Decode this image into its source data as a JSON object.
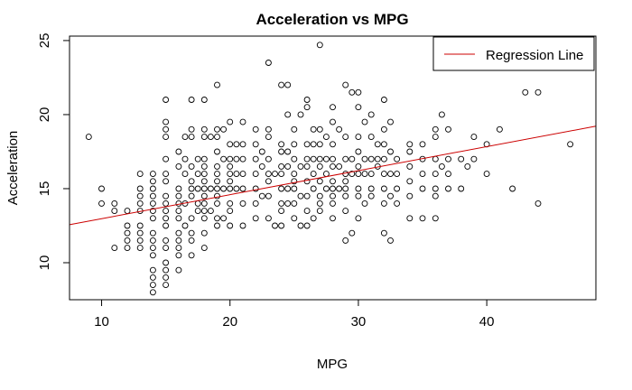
{
  "chart_data": {
    "type": "scatter",
    "title": "Acceleration vs MPG",
    "xlabel": "MPG",
    "ylabel": "Acceleration",
    "xlim": [
      7.5,
      48.5
    ],
    "ylim": [
      7.5,
      25.3
    ],
    "x_ticks": [
      10,
      20,
      30,
      40
    ],
    "y_ticks": [
      10,
      15,
      20,
      25
    ],
    "grid": false,
    "legend": {
      "position": "top-right",
      "entries": [
        {
          "label": "Regression Line",
          "color": "#cc0000"
        }
      ]
    },
    "series": [
      {
        "points": [
          [
            9,
            18.5
          ],
          [
            10,
            15
          ],
          [
            10,
            14
          ],
          [
            11,
            14
          ],
          [
            11,
            13.5
          ],
          [
            11,
            11
          ],
          [
            12,
            13.5
          ],
          [
            12,
            12.5
          ],
          [
            12,
            12
          ],
          [
            12,
            11.5
          ],
          [
            12,
            11
          ],
          [
            13,
            16
          ],
          [
            13,
            15
          ],
          [
            13,
            14.5
          ],
          [
            13,
            14
          ],
          [
            13,
            13.5
          ],
          [
            13,
            12.5
          ],
          [
            13,
            12
          ],
          [
            13,
            11.5
          ],
          [
            13,
            11
          ],
          [
            14,
            16
          ],
          [
            14,
            15.5
          ],
          [
            14,
            15
          ],
          [
            14,
            14.5
          ],
          [
            14,
            14
          ],
          [
            14,
            13.5
          ],
          [
            14,
            13
          ],
          [
            14,
            12
          ],
          [
            14,
            11.5
          ],
          [
            14,
            11
          ],
          [
            14,
            10.5
          ],
          [
            14,
            9.5
          ],
          [
            14,
            9
          ],
          [
            14,
            8.5
          ],
          [
            14,
            8
          ],
          [
            15,
            21
          ],
          [
            15,
            19.5
          ],
          [
            15,
            19
          ],
          [
            15,
            18.5
          ],
          [
            15,
            17
          ],
          [
            15,
            16
          ],
          [
            15,
            15.5
          ],
          [
            15,
            14.5
          ],
          [
            15,
            14
          ],
          [
            15,
            13.5
          ],
          [
            15,
            13
          ],
          [
            15,
            12.5
          ],
          [
            15,
            11.5
          ],
          [
            15,
            11
          ],
          [
            15,
            10
          ],
          [
            15,
            9.5
          ],
          [
            15,
            9
          ],
          [
            15,
            8.5
          ],
          [
            16,
            17.5
          ],
          [
            16,
            16.5
          ],
          [
            16,
            15
          ],
          [
            16,
            14.5
          ],
          [
            16,
            14
          ],
          [
            16,
            13.5
          ],
          [
            16,
            13
          ],
          [
            16,
            12
          ],
          [
            16,
            11.5
          ],
          [
            16,
            11
          ],
          [
            16,
            10.5
          ],
          [
            16,
            9.5
          ],
          [
            16.5,
            18.5
          ],
          [
            16.5,
            17
          ],
          [
            16.5,
            16
          ],
          [
            16.5,
            14
          ],
          [
            16.5,
            12.5
          ],
          [
            17,
            21
          ],
          [
            17,
            19
          ],
          [
            17,
            18.5
          ],
          [
            17,
            16.5
          ],
          [
            17,
            15.5
          ],
          [
            17,
            15
          ],
          [
            17,
            14.5
          ],
          [
            17,
            13
          ],
          [
            17,
            12
          ],
          [
            17,
            11.5
          ],
          [
            17,
            10.5
          ],
          [
            17.5,
            17
          ],
          [
            17.5,
            16
          ],
          [
            17.5,
            15
          ],
          [
            17.5,
            14
          ],
          [
            17.5,
            13.5
          ],
          [
            18,
            21
          ],
          [
            18,
            19
          ],
          [
            18,
            18.5
          ],
          [
            18,
            17
          ],
          [
            18,
            16.5
          ],
          [
            18,
            16
          ],
          [
            18,
            15.5
          ],
          [
            18,
            15
          ],
          [
            18,
            14.5
          ],
          [
            18,
            14
          ],
          [
            18,
            13.5
          ],
          [
            18,
            13
          ],
          [
            18,
            12
          ],
          [
            18,
            11
          ],
          [
            18.5,
            18.5
          ],
          [
            18.5,
            15
          ],
          [
            18.5,
            13.5
          ],
          [
            19,
            22
          ],
          [
            19,
            19
          ],
          [
            19,
            18.5
          ],
          [
            19,
            17.5
          ],
          [
            19,
            16.5
          ],
          [
            19,
            16
          ],
          [
            19,
            15.5
          ],
          [
            19,
            15
          ],
          [
            19,
            14.5
          ],
          [
            19,
            14
          ],
          [
            19,
            13
          ],
          [
            19,
            12.5
          ],
          [
            19.5,
            19
          ],
          [
            19.5,
            17
          ],
          [
            19.5,
            15
          ],
          [
            19.5,
            13
          ],
          [
            20,
            19.5
          ],
          [
            20,
            18
          ],
          [
            20,
            17
          ],
          [
            20,
            16.5
          ],
          [
            20,
            16
          ],
          [
            20,
            15.5
          ],
          [
            20,
            15
          ],
          [
            20,
            14
          ],
          [
            20,
            13.5
          ],
          [
            20,
            12.5
          ],
          [
            20.5,
            18
          ],
          [
            20.5,
            17
          ],
          [
            20.5,
            16
          ],
          [
            20.5,
            15
          ],
          [
            21,
            19.5
          ],
          [
            21,
            18
          ],
          [
            21,
            17
          ],
          [
            21,
            16
          ],
          [
            21,
            15
          ],
          [
            21,
            14
          ],
          [
            21,
            12.5
          ],
          [
            22,
            19
          ],
          [
            22,
            18
          ],
          [
            22,
            17
          ],
          [
            22,
            16
          ],
          [
            22,
            15
          ],
          [
            22,
            14
          ],
          [
            22,
            13
          ],
          [
            22.5,
            17.5
          ],
          [
            22.5,
            16.5
          ],
          [
            22.5,
            14.5
          ],
          [
            23,
            23.5
          ],
          [
            23,
            19
          ],
          [
            23,
            18.5
          ],
          [
            23,
            17
          ],
          [
            23,
            16
          ],
          [
            23,
            15.5
          ],
          [
            23,
            14.5
          ],
          [
            23,
            13
          ],
          [
            23.5,
            16
          ],
          [
            23.5,
            12.5
          ],
          [
            24,
            22
          ],
          [
            24,
            18
          ],
          [
            24,
            17.5
          ],
          [
            24,
            16.5
          ],
          [
            24,
            16
          ],
          [
            24,
            15
          ],
          [
            24,
            14
          ],
          [
            24,
            13.5
          ],
          [
            24,
            12.5
          ],
          [
            24.5,
            22
          ],
          [
            24.5,
            20
          ],
          [
            24.5,
            17.5
          ],
          [
            24.5,
            16.5
          ],
          [
            24.5,
            15
          ],
          [
            24.5,
            14
          ],
          [
            25,
            19
          ],
          [
            25,
            18
          ],
          [
            25,
            17
          ],
          [
            25,
            16
          ],
          [
            25,
            15.5
          ],
          [
            25,
            15
          ],
          [
            25,
            14
          ],
          [
            25,
            13
          ],
          [
            25.5,
            20
          ],
          [
            25.5,
            16.5
          ],
          [
            25.5,
            14.5
          ],
          [
            25.5,
            12.5
          ],
          [
            26,
            21
          ],
          [
            26,
            20.5
          ],
          [
            26,
            18
          ],
          [
            26,
            17
          ],
          [
            26,
            16.5
          ],
          [
            26,
            15.5
          ],
          [
            26,
            14.5
          ],
          [
            26,
            13.5
          ],
          [
            26,
            12.5
          ],
          [
            26.5,
            19
          ],
          [
            26.5,
            18
          ],
          [
            26.5,
            17
          ],
          [
            26.5,
            16
          ],
          [
            26.5,
            15
          ],
          [
            26.5,
            13
          ],
          [
            27,
            24.7
          ],
          [
            27,
            19
          ],
          [
            27,
            18
          ],
          [
            27,
            17
          ],
          [
            27,
            16.5
          ],
          [
            27,
            15.5
          ],
          [
            27,
            14.5
          ],
          [
            27,
            14
          ],
          [
            27,
            13.5
          ],
          [
            27.5,
            18.5
          ],
          [
            27.5,
            17
          ],
          [
            27.5,
            16
          ],
          [
            27.5,
            15
          ],
          [
            28,
            20.5
          ],
          [
            28,
            19.5
          ],
          [
            28,
            18
          ],
          [
            28,
            17
          ],
          [
            28,
            16.5
          ],
          [
            28,
            15.5
          ],
          [
            28,
            15
          ],
          [
            28,
            14.5
          ],
          [
            28,
            14
          ],
          [
            28,
            13
          ],
          [
            28.5,
            19
          ],
          [
            28.5,
            16.5
          ],
          [
            28.5,
            15
          ],
          [
            29,
            22
          ],
          [
            29,
            18.5
          ],
          [
            29,
            17
          ],
          [
            29,
            16
          ],
          [
            29,
            15.5
          ],
          [
            29,
            15
          ],
          [
            29,
            14.5
          ],
          [
            29,
            13.5
          ],
          [
            29,
            11.5
          ],
          [
            29.5,
            21.5
          ],
          [
            29.5,
            17
          ],
          [
            29.5,
            16
          ],
          [
            29.5,
            12
          ],
          [
            30,
            21.5
          ],
          [
            30,
            20.5
          ],
          [
            30,
            18.5
          ],
          [
            30,
            17.5
          ],
          [
            30,
            16.5
          ],
          [
            30,
            16
          ],
          [
            30,
            15
          ],
          [
            30,
            14.5
          ],
          [
            30,
            13
          ],
          [
            30.5,
            19.5
          ],
          [
            30.5,
            17
          ],
          [
            30.5,
            16
          ],
          [
            30.5,
            14
          ],
          [
            31,
            20
          ],
          [
            31,
            18.5
          ],
          [
            31,
            17
          ],
          [
            31,
            16
          ],
          [
            31,
            15
          ],
          [
            31,
            14.5
          ],
          [
            31.5,
            18
          ],
          [
            31.5,
            17
          ],
          [
            31.5,
            16.5
          ],
          [
            32,
            21
          ],
          [
            32,
            19
          ],
          [
            32,
            18
          ],
          [
            32,
            17
          ],
          [
            32,
            16
          ],
          [
            32,
            15
          ],
          [
            32,
            14
          ],
          [
            32,
            12
          ],
          [
            32.5,
            19.5
          ],
          [
            32.5,
            17.5
          ],
          [
            32.5,
            16
          ],
          [
            32.5,
            14.5
          ],
          [
            32.5,
            11.5
          ],
          [
            33,
            17
          ],
          [
            33,
            16
          ],
          [
            33,
            15
          ],
          [
            33,
            14
          ],
          [
            34,
            18
          ],
          [
            34,
            17.5
          ],
          [
            34,
            16.5
          ],
          [
            34,
            15.5
          ],
          [
            34,
            14.5
          ],
          [
            34,
            13
          ],
          [
            35,
            18
          ],
          [
            35,
            17
          ],
          [
            35,
            16
          ],
          [
            35,
            15
          ],
          [
            35,
            13
          ],
          [
            36,
            19
          ],
          [
            36,
            18.5
          ],
          [
            36,
            17
          ],
          [
            36,
            16
          ],
          [
            36,
            15
          ],
          [
            36,
            14.5
          ],
          [
            36,
            13
          ],
          [
            36.5,
            20
          ],
          [
            36.5,
            16.5
          ],
          [
            37,
            19
          ],
          [
            37,
            17
          ],
          [
            37,
            16
          ],
          [
            37,
            15
          ],
          [
            38,
            17
          ],
          [
            38,
            15
          ],
          [
            38.5,
            16.5
          ],
          [
            39,
            18.5
          ],
          [
            39,
            17
          ],
          [
            40,
            18
          ],
          [
            40,
            16
          ],
          [
            41,
            19
          ],
          [
            42,
            15
          ],
          [
            43,
            21.5
          ],
          [
            44,
            21.5
          ],
          [
            44,
            14
          ],
          [
            46.5,
            18
          ]
        ]
      }
    ],
    "regression": {
      "intercept": 11.35,
      "slope": 0.1622,
      "color": "#cc0000"
    }
  }
}
